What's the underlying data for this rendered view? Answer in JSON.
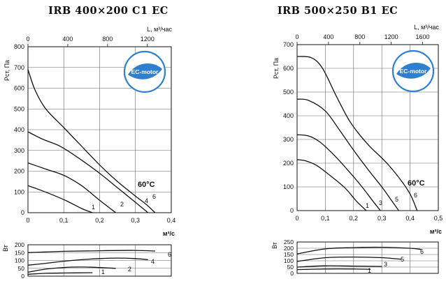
{
  "colors": {
    "curve": "#111111",
    "grid": "#666666",
    "badge_blue": "#2f7fd0",
    "badge_fill": "#e8f1fb"
  },
  "chart_data": [
    {
      "type": "line",
      "title": "IRB 400×200 C1 EC",
      "badge": "EC-motor",
      "temperature_label": "60°C",
      "xlabel": "м³/с",
      "x2label": "L, м³/час",
      "ylabel": "Рст, Па",
      "xlim": [
        0,
        0.4
      ],
      "ylim": [
        0,
        800
      ],
      "x2lim": [
        0,
        1440
      ],
      "grid": true,
      "x_ticks": [
        "0",
        "0,1",
        "0,2",
        "0,3",
        "0,4"
      ],
      "y_ticks": [
        "0",
        "100",
        "200",
        "300",
        "400",
        "500",
        "600",
        "700",
        "800"
      ],
      "x2_ticks": [
        "0",
        "400",
        "800",
        "1200"
      ],
      "series": [
        {
          "name": "1",
          "x": [
            0,
            0.03,
            0.07,
            0.11,
            0.15,
            0.18
          ],
          "y": [
            130,
            112,
            85,
            55,
            20,
            0
          ]
        },
        {
          "name": "2",
          "x": [
            0,
            0.05,
            0.1,
            0.15,
            0.2,
            0.245
          ],
          "y": [
            240,
            210,
            180,
            130,
            60,
            0
          ]
        },
        {
          "name": "4",
          "x": [
            0,
            0.04,
            0.09,
            0.14,
            0.2,
            0.25,
            0.3,
            0.335
          ],
          "y": [
            390,
            355,
            320,
            265,
            190,
            120,
            50,
            0
          ]
        },
        {
          "name": "6",
          "x": [
            0,
            0.02,
            0.05,
            0.1,
            0.15,
            0.2,
            0.25,
            0.3,
            0.33,
            0.355
          ],
          "y": [
            690,
            590,
            500,
            410,
            320,
            230,
            150,
            80,
            40,
            0
          ]
        }
      ],
      "power": {
        "ylabel": "Вт",
        "ylim": [
          0,
          200
        ],
        "y_ticks": [
          "0",
          "50",
          "100",
          "150",
          "200"
        ],
        "series": [
          {
            "name": "1",
            "x": [
              0,
              0.05,
              0.1,
              0.18
            ],
            "y": [
              12,
              18,
              20,
              22
            ]
          },
          {
            "name": "2",
            "x": [
              0,
              0.05,
              0.1,
              0.15,
              0.2,
              0.245
            ],
            "y": [
              25,
              45,
              55,
              58,
              55,
              50
            ]
          },
          {
            "name": "4",
            "x": [
              0,
              0.05,
              0.1,
              0.15,
              0.2,
              0.25,
              0.3,
              0.335
            ],
            "y": [
              70,
              82,
              95,
              105,
              112,
              115,
              112,
              105
            ]
          },
          {
            "name": "6",
            "x": [
              0,
              0.1,
              0.2,
              0.3,
              0.355
            ],
            "y": [
              150,
              158,
              162,
              164,
              160
            ]
          }
        ]
      }
    },
    {
      "type": "line",
      "title": "IRB 500×250 B1 EC",
      "badge": "EC-motor",
      "temperature_label": "60°C",
      "xlabel": "м³/с",
      "x2label": "L, м³/час",
      "ylabel": "Рст, Па",
      "xlim": [
        0,
        0.5
      ],
      "ylim": [
        0,
        700
      ],
      "x2lim": [
        0,
        1800
      ],
      "grid": true,
      "x_ticks": [
        "0",
        "0,1",
        "0,2",
        "0,3",
        "0,4",
        "0,5"
      ],
      "y_ticks": [
        "0",
        "100",
        "200",
        "300",
        "400",
        "500",
        "600",
        "700"
      ],
      "x2_ticks": [
        "0",
        "400",
        "800",
        "1200",
        "1600"
      ],
      "series": [
        {
          "name": "1",
          "x": [
            0,
            0.03,
            0.07,
            0.12,
            0.17,
            0.21,
            0.245
          ],
          "y": [
            215,
            210,
            190,
            145,
            95,
            40,
            0
          ]
        },
        {
          "name": "3",
          "x": [
            0,
            0.04,
            0.08,
            0.13,
            0.18,
            0.23,
            0.265,
            0.295
          ],
          "y": [
            320,
            315,
            290,
            235,
            170,
            100,
            45,
            0
          ]
        },
        {
          "name": "5",
          "x": [
            0,
            0.04,
            0.1,
            0.15,
            0.2,
            0.25,
            0.3,
            0.33,
            0.36
          ],
          "y": [
            470,
            465,
            420,
            340,
            255,
            175,
            100,
            50,
            0
          ]
        },
        {
          "name": "6",
          "x": [
            0,
            0.05,
            0.09,
            0.14,
            0.19,
            0.25,
            0.31,
            0.36,
            0.4,
            0.425
          ],
          "y": [
            650,
            645,
            600,
            480,
            370,
            280,
            210,
            140,
            70,
            0
          ]
        }
      ],
      "power": {
        "ylabel": "Вт",
        "ylim": [
          0,
          250
        ],
        "y_ticks": [
          "0",
          "50",
          "100",
          "150",
          "200",
          "250"
        ],
        "series": [
          {
            "name": "1",
            "x": [
              0,
              0.1,
              0.2,
              0.26
            ],
            "y": [
              30,
              35,
              35,
              32
            ]
          },
          {
            "name": "3",
            "x": [
              0,
              0.1,
              0.2,
              0.3
            ],
            "y": [
              50,
              60,
              58,
              55
            ]
          },
          {
            "name": "5",
            "x": [
              0,
              0.1,
              0.2,
              0.3,
              0.37
            ],
            "y": [
              95,
              125,
              130,
              125,
              112
            ]
          },
          {
            "name": "6",
            "x": [
              0,
              0.1,
              0.2,
              0.3,
              0.4,
              0.44
            ],
            "y": [
              155,
              195,
              205,
              208,
              200,
              190
            ]
          }
        ]
      }
    }
  ]
}
